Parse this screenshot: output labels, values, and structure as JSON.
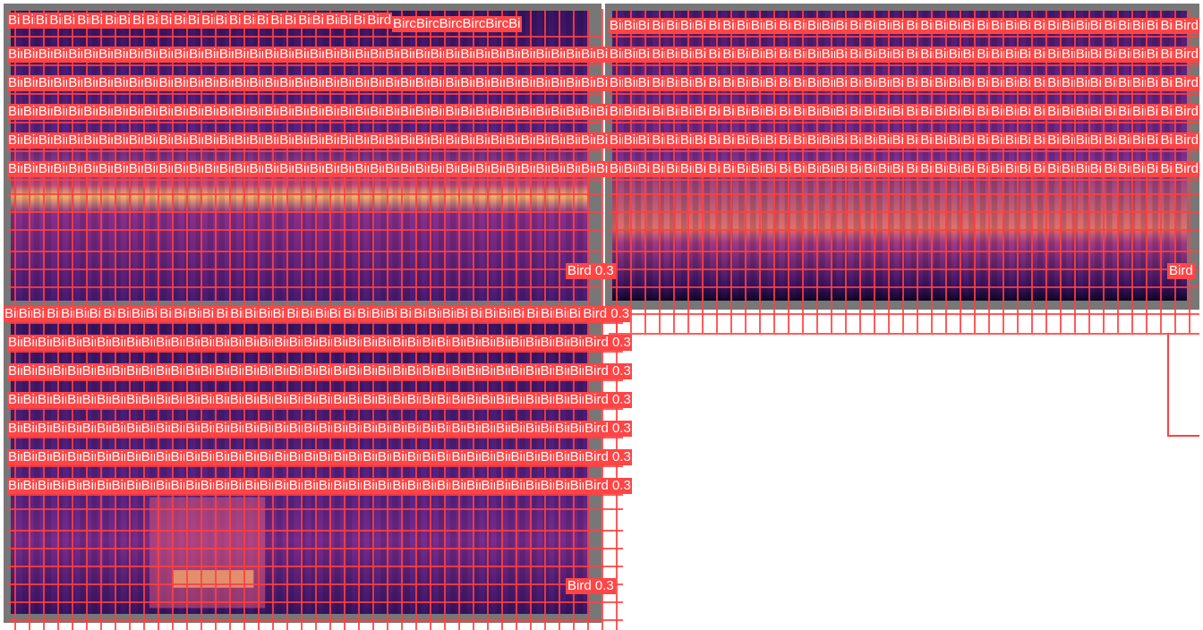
{
  "colors": {
    "box": "#ff4545",
    "panel_bg": "#777777",
    "spec_dark": "#2a0f4f",
    "spec_mid": "#6b2a8c",
    "spec_bright": "#f5c06a"
  },
  "detection": {
    "class_label": "Bird",
    "score_label": "0.3"
  },
  "panels": [
    {
      "name": "top-left",
      "row_labels": [
        "Bird",
        "Bird",
        "Bird",
        "Bird",
        "Bird",
        "Bird"
      ],
      "header_label": "BircBircBircBircBircBi",
      "bottom_label": "Bird 0.3"
    },
    {
      "name": "top-right",
      "row_labels": [
        "Bird",
        "Bird",
        "Bird",
        "Bird",
        "Bird",
        "Bird"
      ],
      "bottom_label": "Bird"
    },
    {
      "name": "bottom-left",
      "row_labels": [
        "Bird 0.3",
        "Bird 0.3",
        "Bird 0.3",
        "Bird 0.3",
        "Bird 0.3",
        "Bird 0.3",
        "Bird 0.3"
      ],
      "bottom_label": "Bird 0.3"
    }
  ]
}
